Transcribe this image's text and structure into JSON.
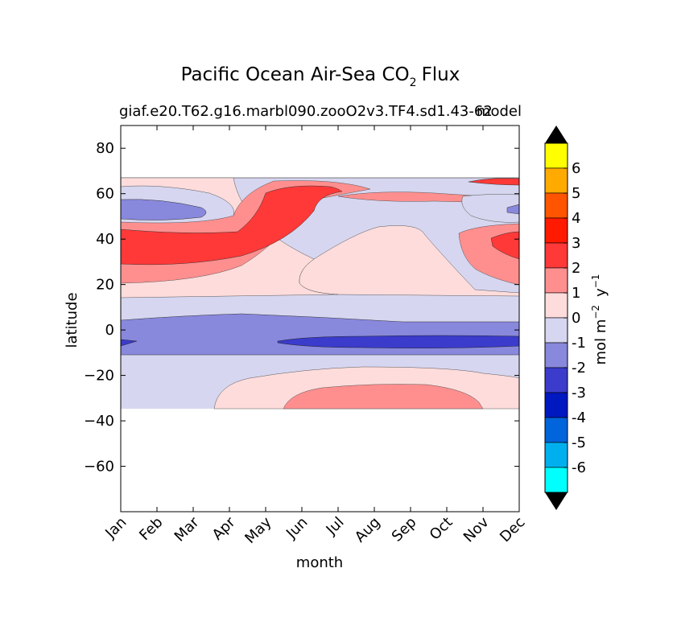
{
  "chart_data": {
    "type": "heatmap",
    "title": "Pacific Ocean Air-Sea CO",
    "title_subscript": "2",
    "title_suffix": "Flux",
    "subtitle_left": "giaf.e20.T62.g16.marbl090.zooO2v3.TF4.sd1.43-62",
    "subtitle_right": "model",
    "xlabel": "month",
    "ylabel": "latitude",
    "categories": [
      "Jan",
      "Feb",
      "Mar",
      "Apr",
      "May",
      "Jun",
      "Jul",
      "Aug",
      "Sep",
      "Oct",
      "Nov",
      "Dec"
    ],
    "xlim": [
      1,
      12
    ],
    "ylim": [
      -80,
      90
    ],
    "yticks": [
      80,
      60,
      40,
      20,
      0,
      -20,
      -40,
      -60
    ],
    "ytick_labels": [
      "80",
      "60",
      "40",
      "20",
      "0",
      "−20",
      "−40",
      "−60"
    ],
    "data_lat_range": [
      -34,
      67
    ],
    "colorbar": {
      "label": "mol m",
      "label_exp1": "−2",
      "label_mid": "y",
      "label_exp2": "−1",
      "tick_labels": [
        "6",
        "5",
        "4",
        "3",
        "2",
        "1",
        "0",
        "-1",
        "-2",
        "-3",
        "-4",
        "-5",
        "-6"
      ],
      "colors": [
        "#ffff00",
        "#ffaa00",
        "#ff5500",
        "#ff1a00",
        "#ff3838",
        "#ff8f8f",
        "#ffdcdc",
        "#d6d6f0",
        "#8888dd",
        "#3b3bcc",
        "#0018c0",
        "#0064dc",
        "#00b0ee",
        "#00ffff"
      ],
      "extend": "both"
    },
    "contour_bands": [
      {
        "level": "0 to 1",
        "color": "#ffdcdc",
        "regions": [
          "60N band",
          "25N-60N background",
          "south subtropics -15 to -30"
        ]
      },
      {
        "level": "1 to 2",
        "color": "#ff8f8f",
        "regions": [
          "20N-45N winter",
          "southern hemisphere -25 to -34 Jun-Nov",
          "45N Oct-Dec"
        ]
      },
      {
        "level": "2 to 3",
        "color": "#ff3838",
        "regions": [
          "30N-45N Jan-Jun",
          "60N May-Jul",
          "40N Nov-Dec"
        ]
      },
      {
        "level": "-1 to 0",
        "color": "#d6d6f0",
        "regions": [
          "tropics 15N to -10",
          "55N summer",
          "southern ocean"
        ]
      },
      {
        "level": "-2 to -1",
        "color": "#8888dd",
        "regions": [
          "equatorial band 5N to -10",
          "55N Jan-Mar"
        ]
      },
      {
        "level": "-3 to -2",
        "color": "#3b3bcc",
        "regions": [
          "equator -2 to -7 Jun-Dec"
        ]
      }
    ]
  }
}
